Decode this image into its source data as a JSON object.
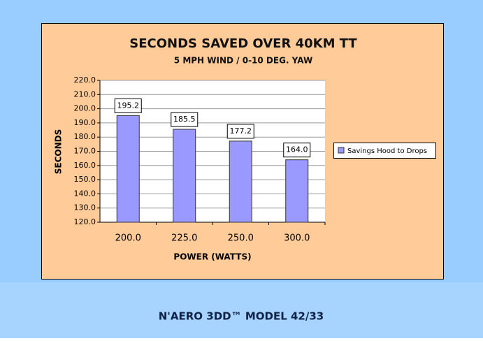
{
  "chart_data": {
    "type": "bar",
    "title": "SECONDS SAVED OVER 40KM TT",
    "subtitle": "5 MPH WIND / 0-10 DEG. YAW",
    "x_label": "POWER (WATTS)",
    "y_label": "SECONDS",
    "categories": [
      "200.0",
      "225.0",
      "250.0",
      "300.0"
    ],
    "series": [
      {
        "name": "Savings Hood to Drops",
        "color": "#9999ff",
        "values": [
          195.2,
          185.5,
          177.2,
          164.0
        ],
        "value_labels": [
          "195.2",
          "185.5",
          "177.2",
          "164.0"
        ]
      }
    ],
    "ylim": [
      120,
      220
    ],
    "yticks": [
      {
        "value": 120,
        "label": "120.0"
      },
      {
        "value": 130,
        "label": "130.0"
      },
      {
        "value": 140,
        "label": "140.0"
      },
      {
        "value": 150,
        "label": "150.0"
      },
      {
        "value": 160,
        "label": "160.0"
      },
      {
        "value": 170,
        "label": "170.0"
      },
      {
        "value": 180,
        "label": "180.0"
      },
      {
        "value": 190,
        "label": "190.0"
      },
      {
        "value": 200,
        "label": "200.0"
      },
      {
        "value": 210,
        "label": "210.0"
      },
      {
        "value": 220,
        "label": "220.0"
      }
    ],
    "grid": true,
    "legend": "right"
  },
  "footer": {
    "text": "N'AERO 3DD™ MODEL 42/33"
  }
}
